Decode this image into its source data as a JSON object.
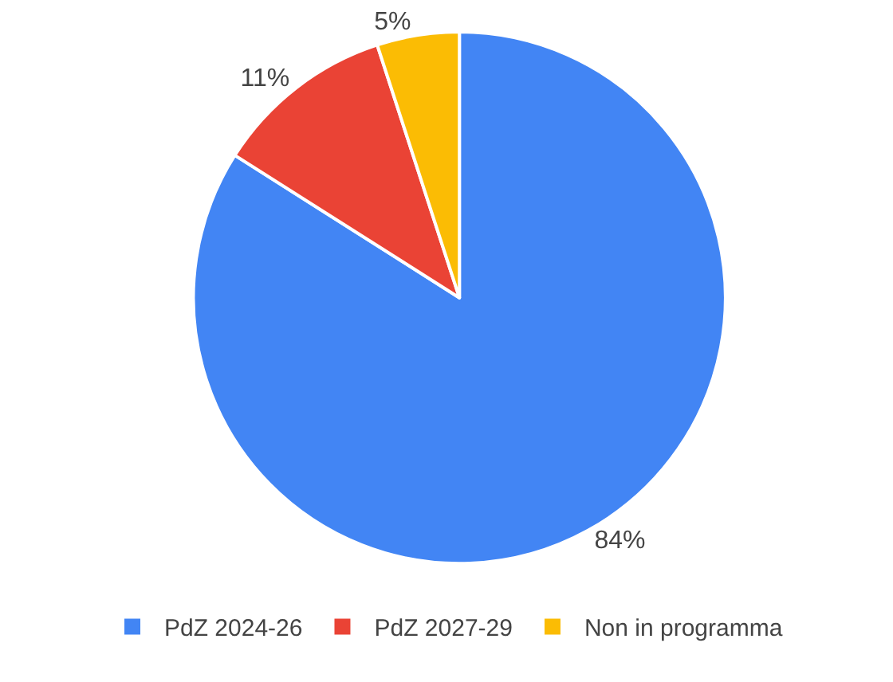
{
  "chart_data": {
    "type": "pie",
    "categories": [
      "PdZ 2024-26",
      "PdZ 2027-29",
      "Non in programma"
    ],
    "values": [
      84,
      11,
      5
    ],
    "value_labels": [
      "84%",
      "11%",
      "5%"
    ],
    "colors": [
      "#4285f4",
      "#ea4335",
      "#fbbc04"
    ],
    "legend": "bottom"
  }
}
